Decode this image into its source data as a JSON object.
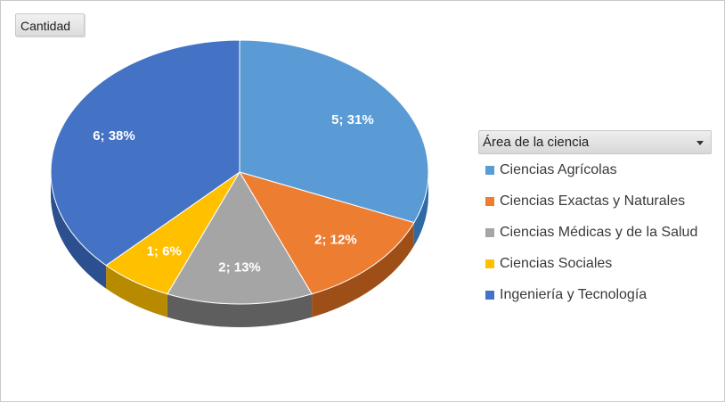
{
  "field_button": {
    "label": "Cantidad"
  },
  "legend": {
    "title": "Área de la ciencia",
    "dropdown_icon": "dropdown-arrow-icon"
  },
  "chart_data": {
    "type": "pie",
    "title": "",
    "categories": [
      "Ciencias Agrícolas",
      "Ciencias Exactas y Naturales",
      "Ciencias Médicas y de la Salud",
      "Ciencias Sociales",
      "Ingeniería y Tecnología"
    ],
    "values": [
      5,
      2,
      2,
      1,
      6
    ],
    "percentages": [
      31,
      12,
      13,
      6,
      38
    ],
    "data_labels": [
      "5; 31%",
      "2; 12%",
      "2; 13%",
      "1; 6%",
      "6; 38%"
    ],
    "colors": [
      "#5b9bd5",
      "#ed7d31",
      "#a5a5a5",
      "#ffc000",
      "#4472c4"
    ],
    "side_colors": [
      "#2e6aa3",
      "#9e4f17",
      "#5e5e5e",
      "#b88a00",
      "#2b4f8f"
    ],
    "legend_position": "right",
    "style": "3d"
  }
}
